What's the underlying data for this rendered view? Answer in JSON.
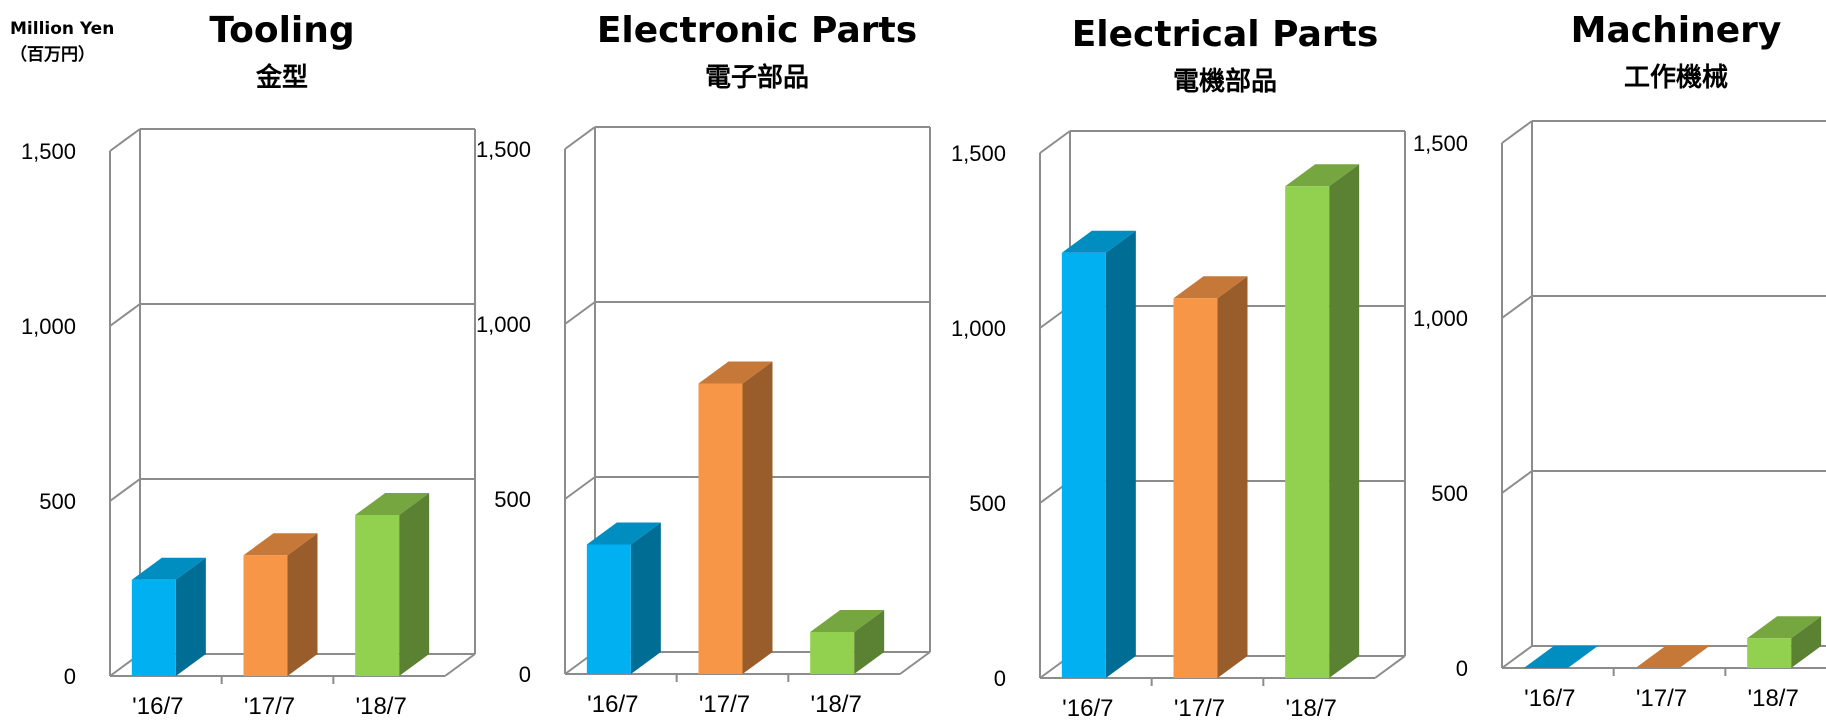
{
  "unit": {
    "en": "Million Yen",
    "ja": "（百万円）"
  },
  "chart_data": [
    {
      "type": "bar",
      "title": "Tooling",
      "subtitle": "金型",
      "categories": [
        "'16/7",
        "'17/7",
        "'18/7"
      ],
      "values": [
        275,
        345,
        460
      ],
      "ylim": [
        0,
        1500
      ],
      "yticks": [
        0,
        500,
        1000,
        1500
      ],
      "ytick_labels": [
        "0",
        "500",
        "1,000",
        "1,500"
      ],
      "grid": true,
      "colors": [
        "#00B0F0",
        "#F79646",
        "#92D050"
      ]
    },
    {
      "type": "bar",
      "title": "Electronic Parts",
      "subtitle": "電子部品",
      "categories": [
        "'16/7",
        "'17/7",
        "'18/7"
      ],
      "values": [
        370,
        830,
        120
      ],
      "ylim": [
        0,
        1500
      ],
      "yticks": [
        0,
        500,
        1000,
        1500
      ],
      "ytick_labels": [
        "0",
        "500",
        "1,000",
        "1,500"
      ],
      "grid": true,
      "colors": [
        "#00B0F0",
        "#F79646",
        "#92D050"
      ]
    },
    {
      "type": "bar",
      "title": "Electrical Parts",
      "subtitle": "電機部品",
      "categories": [
        "'16/7",
        "'17/7",
        "'18/7"
      ],
      "values": [
        1215,
        1085,
        1405
      ],
      "ylim": [
        0,
        1500
      ],
      "yticks": [
        0,
        500,
        1000,
        1500
      ],
      "ytick_labels": [
        "0",
        "500",
        "1,000",
        "1,500"
      ],
      "grid": true,
      "colors": [
        "#00B0F0",
        "#F79646",
        "#92D050"
      ]
    },
    {
      "type": "bar",
      "title": "Machinery",
      "subtitle": "工作機械",
      "categories": [
        "'16/7",
        "'17/7",
        "'18/7"
      ],
      "values": [
        0,
        0,
        85
      ],
      "ylim": [
        0,
        1500
      ],
      "yticks": [
        0,
        500,
        1000,
        1500
      ],
      "ytick_labels": [
        "0",
        "500",
        "1,000",
        "1,500"
      ],
      "grid": true,
      "colors": [
        "#00B0F0",
        "#F79646",
        "#92D050"
      ]
    }
  ]
}
